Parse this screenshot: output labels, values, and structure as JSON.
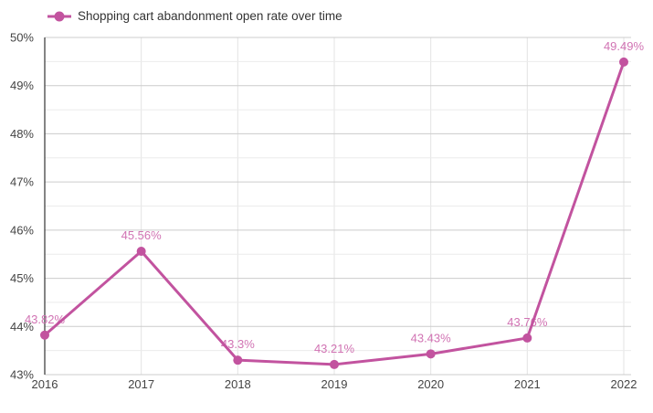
{
  "legend": {
    "label": "Shopping cart abandonment open rate over time"
  },
  "chart_data": {
    "type": "line",
    "title": "Shopping cart abandonment open rate over time",
    "categories": [
      "2016",
      "2017",
      "2018",
      "2019",
      "2020",
      "2021",
      "2022"
    ],
    "values": [
      43.82,
      45.56,
      43.3,
      43.21,
      43.43,
      43.76,
      49.49
    ],
    "point_labels": [
      "43.82%",
      "45.56%",
      "43.3%",
      "43.21%",
      "43.43%",
      "43.76%",
      "49.49%"
    ],
    "xlabel": "",
    "ylabel": "",
    "ylim": [
      43,
      50
    ],
    "y_major_step": 1,
    "y_minor_step": 0.5,
    "y_tick_labels": [
      "43%",
      "44%",
      "45%",
      "46%",
      "47%",
      "48%",
      "49%",
      "50%"
    ],
    "grid": true,
    "legend_position": "top-left"
  },
  "colors": {
    "series": "#c2539f",
    "annotation": "#d173b3",
    "axis_text": "#444444",
    "legend_text": "#333333",
    "grid_major": "#cccccc",
    "grid_minor": "#ebebeb",
    "grid_vertical": "#e3e3e3",
    "axis_line": "#333333",
    "background": "#ffffff"
  }
}
